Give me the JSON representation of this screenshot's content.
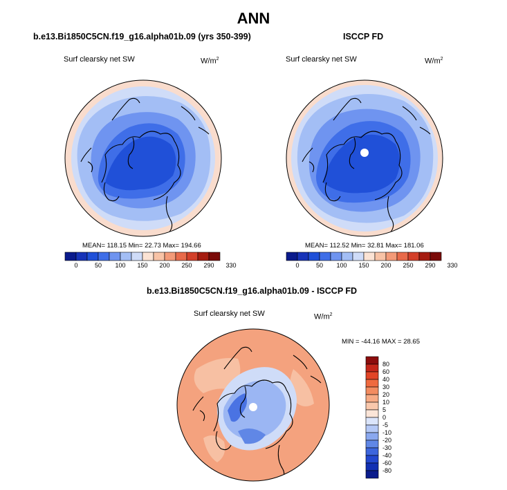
{
  "title": "ANN",
  "panels": {
    "model": {
      "title": "b.e13.Bi1850C5CN.f19_g16.alpha01b.09 (yrs 350-399)",
      "variable": "Surf clearsky net SW",
      "units": "W/m",
      "units_sup": "2",
      "stats": "MEAN= 118.15  Min=  22.73  Max= 194.66"
    },
    "obs": {
      "title": "ISCCP FD",
      "variable": "Surf clearsky net SW",
      "units": "W/m",
      "units_sup": "2",
      "stats": "MEAN= 112.52  Min=  32.81  Max= 181.06"
    },
    "diff": {
      "title": "b.e13.Bi1850C5CN.f19_g16.alpha01b.09 - ISCCP FD",
      "variable": "Surf clearsky net SW",
      "units": "W/m",
      "units_sup": "2",
      "stats": "MIN = -44.16 MAX =  28.65"
    }
  },
  "colorbar_top": {
    "labels": [
      "0",
      "50",
      "100",
      "150",
      "200",
      "250",
      "290",
      "330"
    ],
    "colors": [
      "#0a1a8c",
      "#1733b8",
      "#2050d8",
      "#3f6ee8",
      "#6f94f0",
      "#a3bef5",
      "#cfdcf8",
      "#fbe3d4",
      "#f8c3a6",
      "#f39a78",
      "#e86a4a",
      "#d3402a",
      "#a51c10",
      "#7a0a08"
    ]
  },
  "colorbar_diff": {
    "labels": [
      "80",
      "60",
      "40",
      "30",
      "20",
      "10",
      "5",
      "0",
      "-5",
      "-10",
      "-20",
      "-30",
      "-40",
      "-60",
      "-80"
    ],
    "colors": [
      "#8c0d0d",
      "#c4261a",
      "#e24526",
      "#ef6a3f",
      "#f38c60",
      "#f7ab85",
      "#fac8ac",
      "#fbe5d8",
      "#dbe5fb",
      "#b4c8f6",
      "#8aa8ef",
      "#6087e6",
      "#3d66dd",
      "#2348cf",
      "#1230b3",
      "#0b1c8c"
    ]
  },
  "map_colors": {
    "ocean_low": "#f9dccd",
    "pale_blue": "#cfdcf8",
    "light_blue": "#a3bef5",
    "mid_blue": "#6f94f0",
    "blue": "#3f6ee8",
    "deep_blue": "#2050d8",
    "diff_orange": "#f4a27e",
    "diff_salmon": "#f7c0a3",
    "diff_blue": "#9bb6f3",
    "diff_dark_blue": "#4a73e3"
  }
}
